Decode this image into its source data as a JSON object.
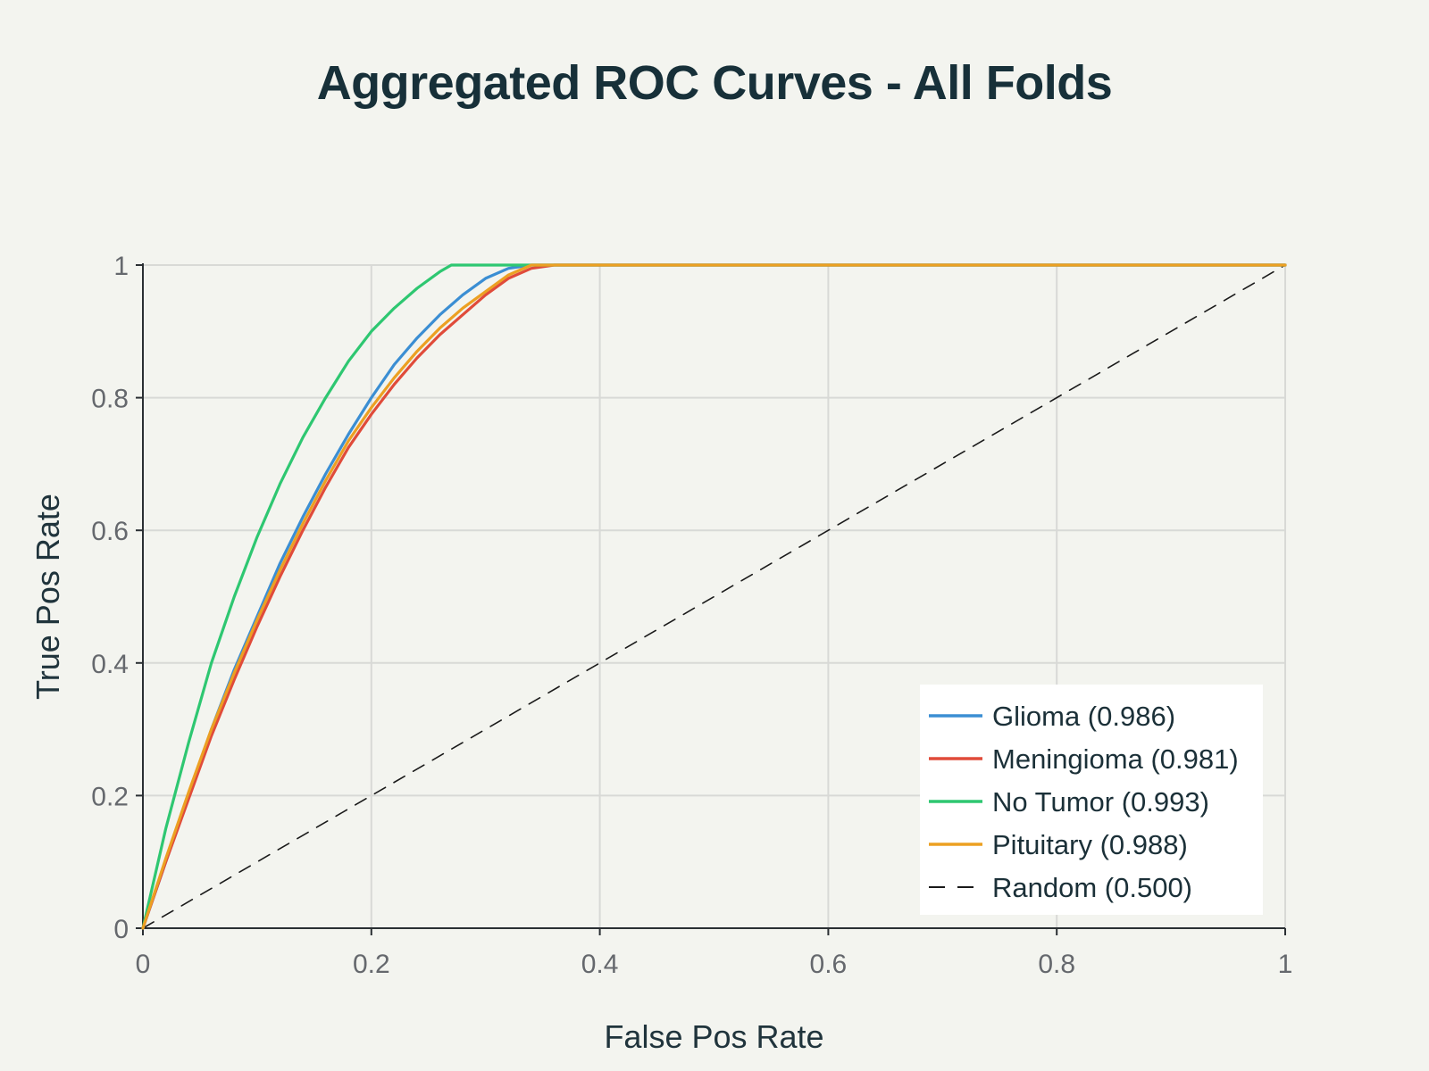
{
  "chart_data": {
    "type": "line",
    "title": "Aggregated ROC Curves - All Folds",
    "xlabel": "False Pos Rate",
    "ylabel": "True Pos Rate",
    "xlim": [
      0,
      1
    ],
    "ylim": [
      0,
      1
    ],
    "x_ticks": [
      0,
      0.2,
      0.4,
      0.6,
      0.8,
      1
    ],
    "y_ticks": [
      0,
      0.2,
      0.4,
      0.6,
      0.8,
      1
    ],
    "x_tick_labels": [
      "0",
      "0.2",
      "0.4",
      "0.6",
      "0.8",
      "1"
    ],
    "y_tick_labels": [
      "0",
      "0.2",
      "0.4",
      "0.6",
      "0.8",
      "1"
    ],
    "grid": true,
    "legend_position": "bottom-right",
    "series": [
      {
        "name": "Glioma (0.986)",
        "color": "#3b8ed3",
        "dash": "solid",
        "x": [
          0,
          0.02,
          0.04,
          0.06,
          0.08,
          0.1,
          0.12,
          0.14,
          0.16,
          0.18,
          0.2,
          0.22,
          0.24,
          0.26,
          0.28,
          0.3,
          0.32,
          0.34,
          0.36,
          1
        ],
        "y": [
          0,
          0.1,
          0.2,
          0.3,
          0.39,
          0.47,
          0.55,
          0.62,
          0.685,
          0.745,
          0.8,
          0.85,
          0.89,
          0.925,
          0.955,
          0.98,
          0.995,
          1,
          1,
          1
        ]
      },
      {
        "name": "Meningioma (0.981)",
        "color": "#e04b3a",
        "dash": "solid",
        "x": [
          0,
          0.02,
          0.04,
          0.06,
          0.08,
          0.1,
          0.12,
          0.14,
          0.16,
          0.18,
          0.2,
          0.22,
          0.24,
          0.26,
          0.28,
          0.3,
          0.32,
          0.34,
          0.36,
          1
        ],
        "y": [
          0,
          0.1,
          0.195,
          0.29,
          0.375,
          0.455,
          0.53,
          0.6,
          0.665,
          0.725,
          0.775,
          0.82,
          0.86,
          0.895,
          0.925,
          0.955,
          0.98,
          0.995,
          1,
          1
        ]
      },
      {
        "name": "No Tumor (0.993)",
        "color": "#2ec771",
        "dash": "solid",
        "x": [
          0,
          0.02,
          0.04,
          0.06,
          0.08,
          0.1,
          0.12,
          0.14,
          0.16,
          0.18,
          0.2,
          0.22,
          0.24,
          0.26,
          0.27,
          1
        ],
        "y": [
          0,
          0.15,
          0.28,
          0.4,
          0.5,
          0.59,
          0.67,
          0.74,
          0.8,
          0.855,
          0.9,
          0.935,
          0.965,
          0.99,
          1,
          1
        ]
      },
      {
        "name": "Pituitary (0.988)",
        "color": "#eca022",
        "dash": "solid",
        "x": [
          0,
          0.02,
          0.04,
          0.06,
          0.08,
          0.1,
          0.12,
          0.14,
          0.16,
          0.18,
          0.2,
          0.22,
          0.24,
          0.26,
          0.28,
          0.3,
          0.32,
          0.34,
          1
        ],
        "y": [
          0,
          0.105,
          0.205,
          0.3,
          0.385,
          0.465,
          0.54,
          0.61,
          0.675,
          0.735,
          0.785,
          0.83,
          0.87,
          0.905,
          0.935,
          0.96,
          0.985,
          1,
          1
        ]
      },
      {
        "name": "Random (0.500)",
        "color": "#1a1a1a",
        "dash": "dashed",
        "x": [
          0,
          1
        ],
        "y": [
          0,
          1
        ]
      }
    ]
  }
}
